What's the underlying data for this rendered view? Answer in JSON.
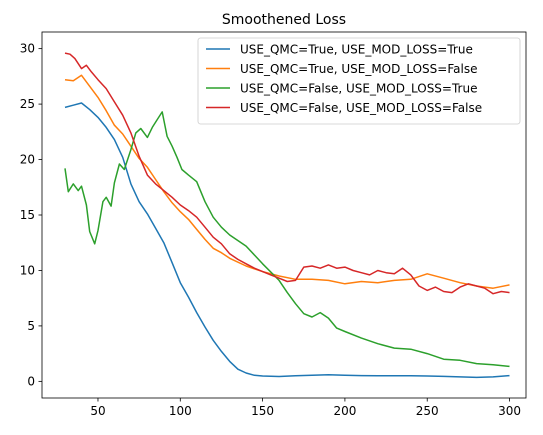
{
  "chart_data": {
    "type": "line",
    "title": "Smoothened Loss",
    "xlabel": "",
    "ylabel": "",
    "xlim": [
      16,
      310
    ],
    "ylim": [
      -1.5,
      31.5
    ],
    "xticks": [
      50,
      100,
      150,
      200,
      250,
      300
    ],
    "yticks": [
      0,
      5,
      10,
      15,
      20,
      25,
      30
    ],
    "grid": false,
    "legend_position": "upper-right",
    "series": [
      {
        "name": "USE_QMC=True, USE_MOD_LOSS=True",
        "color": "#1f77b4",
        "x": [
          30,
          35,
          40,
          45,
          50,
          55,
          60,
          65,
          70,
          75,
          80,
          85,
          90,
          95,
          100,
          105,
          110,
          115,
          120,
          125,
          130,
          135,
          140,
          145,
          150,
          160,
          170,
          180,
          190,
          200,
          210,
          220,
          230,
          240,
          250,
          260,
          270,
          280,
          290,
          300
        ],
        "y": [
          24.7,
          24.9,
          25.1,
          24.5,
          23.8,
          22.9,
          21.8,
          20.2,
          17.8,
          16.2,
          15.1,
          13.8,
          12.5,
          10.7,
          8.9,
          7.6,
          6.2,
          4.9,
          3.7,
          2.7,
          1.8,
          1.1,
          0.75,
          0.55,
          0.48,
          0.44,
          0.5,
          0.55,
          0.6,
          0.56,
          0.52,
          0.5,
          0.5,
          0.5,
          0.48,
          0.45,
          0.4,
          0.36,
          0.4,
          0.52
        ]
      },
      {
        "name": "USE_QMC=True, USE_MOD_LOSS=False",
        "color": "#ff7f0e",
        "x": [
          30,
          35,
          40,
          45,
          50,
          55,
          60,
          65,
          70,
          75,
          80,
          85,
          90,
          95,
          100,
          105,
          110,
          115,
          120,
          125,
          130,
          140,
          150,
          160,
          170,
          180,
          190,
          200,
          210,
          220,
          230,
          240,
          250,
          260,
          270,
          280,
          290,
          300
        ],
        "y": [
          27.2,
          27.1,
          27.6,
          26.6,
          25.6,
          24.4,
          23.1,
          22.3,
          21.2,
          20.1,
          19.3,
          18.2,
          17.1,
          16.1,
          15.3,
          14.6,
          13.7,
          12.8,
          12.0,
          11.6,
          11.1,
          10.4,
          9.9,
          9.5,
          9.2,
          9.2,
          9.1,
          8.8,
          9.0,
          8.9,
          9.1,
          9.2,
          9.7,
          9.3,
          8.9,
          8.6,
          8.4,
          8.7
        ]
      },
      {
        "name": "USE_QMC=False, USE_MOD_LOSS=True",
        "color": "#2ca02c",
        "x": [
          30,
          32,
          35,
          38,
          40,
          43,
          45,
          48,
          50,
          53,
          55,
          58,
          60,
          63,
          66,
          70,
          73,
          76,
          80,
          83,
          86,
          89,
          92,
          95,
          98,
          101,
          105,
          110,
          115,
          120,
          125,
          130,
          140,
          150,
          160,
          165,
          170,
          175,
          180,
          185,
          190,
          195,
          200,
          210,
          220,
          230,
          240,
          250,
          260,
          270,
          280,
          290,
          300
        ],
        "y": [
          19.2,
          17.1,
          17.8,
          17.2,
          17.6,
          15.9,
          13.5,
          12.4,
          13.6,
          16.2,
          16.6,
          15.8,
          17.9,
          19.6,
          19.1,
          20.9,
          22.4,
          22.8,
          22.0,
          22.9,
          23.6,
          24.3,
          22.1,
          21.2,
          20.2,
          19.1,
          18.6,
          18.0,
          16.2,
          14.8,
          13.9,
          13.2,
          12.2,
          10.6,
          9.1,
          8.0,
          7.0,
          6.1,
          5.8,
          6.2,
          5.7,
          4.8,
          4.5,
          3.9,
          3.4,
          3.0,
          2.9,
          2.5,
          2.0,
          1.9,
          1.6,
          1.5,
          1.35
        ]
      },
      {
        "name": "USE_QMC=False, USE_MOD_LOSS=False",
        "color": "#d62728",
        "x": [
          30,
          33,
          36,
          40,
          43,
          46,
          50,
          55,
          60,
          65,
          70,
          75,
          80,
          85,
          90,
          95,
          100,
          105,
          110,
          115,
          120,
          125,
          130,
          135,
          140,
          145,
          150,
          155,
          160,
          165,
          170,
          175,
          180,
          185,
          190,
          195,
          200,
          205,
          210,
          215,
          220,
          225,
          230,
          235,
          240,
          245,
          250,
          255,
          260,
          265,
          270,
          275,
          280,
          285,
          290,
          295,
          300
        ],
        "y": [
          29.6,
          29.5,
          29.1,
          28.2,
          28.5,
          27.9,
          27.2,
          26.4,
          25.2,
          24.0,
          22.4,
          20.3,
          18.6,
          17.8,
          17.2,
          16.6,
          15.9,
          15.4,
          14.8,
          13.9,
          13.0,
          12.4,
          11.5,
          11.0,
          10.6,
          10.2,
          9.9,
          9.6,
          9.3,
          9.0,
          9.1,
          10.3,
          10.4,
          10.2,
          10.5,
          10.2,
          10.3,
          10.0,
          9.8,
          9.6,
          10.0,
          9.8,
          9.7,
          10.2,
          9.6,
          8.6,
          8.2,
          8.5,
          8.1,
          8.0,
          8.5,
          8.8,
          8.6,
          8.4,
          7.9,
          8.1,
          8.0
        ]
      }
    ]
  }
}
